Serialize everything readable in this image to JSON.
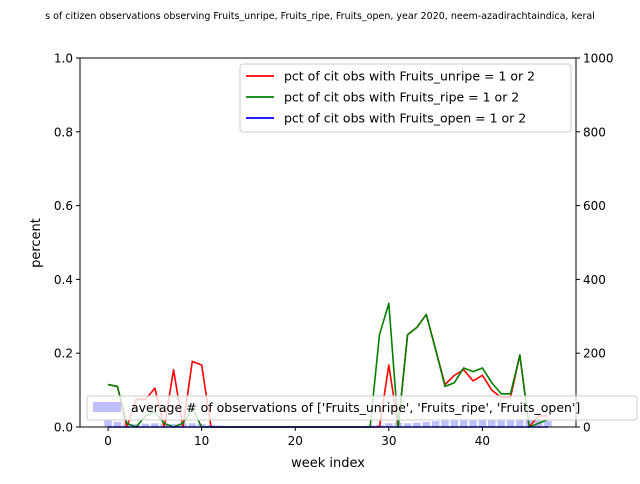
{
  "chart_data": {
    "type": "line",
    "title": "s of citizen observations observing Fruits_unripe, Fruits_ripe, Fruits_open, year 2020, neem-azadirachtaindica, keral",
    "xlabel": "week index",
    "ylabel": "percent",
    "xlim": [
      -3,
      50
    ],
    "ylim": [
      0,
      1.0
    ],
    "y2lim": [
      0,
      1000
    ],
    "xticks": [
      0,
      10,
      20,
      30,
      40
    ],
    "yticks": [
      0.0,
      0.2,
      0.4,
      0.6,
      0.8,
      1.0
    ],
    "y2ticks": [
      0,
      200,
      400,
      600,
      800,
      1000
    ],
    "legend_placement": "top-right",
    "bar_legend_placement": "lower-right",
    "grid": false,
    "x": [
      0,
      1,
      2,
      3,
      4,
      5,
      6,
      7,
      8,
      9,
      10,
      11,
      12,
      13,
      14,
      15,
      16,
      17,
      18,
      19,
      20,
      21,
      22,
      23,
      24,
      25,
      26,
      27,
      28,
      29,
      30,
      31,
      32,
      33,
      34,
      35,
      36,
      37,
      38,
      39,
      40,
      41,
      42,
      43,
      44,
      45,
      46,
      47
    ],
    "series": [
      {
        "name": "pct of cit obs with Fruits_unripe = 1 or 2",
        "color": "#ff0000",
        "values": [
          0.115,
          0.11,
          0,
          0.075,
          0.075,
          0.105,
          0,
          0.155,
          0,
          0.178,
          0.168,
          0,
          0,
          0,
          0,
          0,
          0,
          0,
          0,
          0,
          0,
          0,
          0,
          0,
          0,
          0,
          0,
          0,
          0,
          0,
          0.168,
          0,
          0.25,
          0.27,
          0.305,
          0.21,
          0.115,
          0.14,
          0.155,
          0.125,
          0.14,
          0.1,
          0.08,
          0.08,
          0.195,
          0,
          0.03,
          0.03
        ]
      },
      {
        "name": "pct of cit obs with Fruits_ripe = 1 or 2",
        "color": "#008000",
        "values": [
          0.115,
          0.11,
          0.01,
          0,
          0.03,
          0.04,
          0.01,
          0,
          0.01,
          0.05,
          0,
          0,
          0,
          0,
          0,
          0,
          0,
          0,
          0,
          0,
          0,
          0,
          0,
          0,
          0,
          0,
          0,
          0,
          0,
          0.25,
          0.335,
          0,
          0.25,
          0.27,
          0.305,
          0.21,
          0.11,
          0.12,
          0.16,
          0.15,
          0.16,
          0.12,
          0.09,
          0.09,
          0.195,
          0,
          0.01,
          0.02
        ]
      },
      {
        "name": "pct of cit obs with Fruits_open = 1 or 2",
        "color": "#0000ff",
        "values": [
          0,
          0,
          0,
          0,
          0,
          0,
          0,
          0,
          0,
          0,
          0,
          0,
          0,
          0,
          0,
          0,
          0,
          0,
          0,
          0,
          0,
          0,
          0,
          0,
          0,
          0,
          0,
          0,
          0,
          0,
          0,
          0,
          0,
          0,
          0,
          0,
          0,
          0,
          0,
          0,
          0,
          0,
          0,
          0,
          0,
          0,
          0,
          0
        ]
      }
    ],
    "bars": {
      "name": "average # of observations of ['Fruits_unripe', 'Fruits_ripe', 'Fruits_open']",
      "color": "#8080ff",
      "values": [
        18,
        14,
        10,
        8,
        9,
        10,
        9,
        8,
        10,
        10,
        8,
        6,
        4,
        3,
        2,
        2,
        2,
        2,
        2,
        2,
        2,
        2,
        2,
        2,
        2,
        2,
        2,
        2,
        4,
        6,
        10,
        12,
        10,
        12,
        14,
        16,
        18,
        18,
        18,
        18,
        18,
        18,
        18,
        18,
        18,
        18,
        18,
        16
      ]
    }
  }
}
